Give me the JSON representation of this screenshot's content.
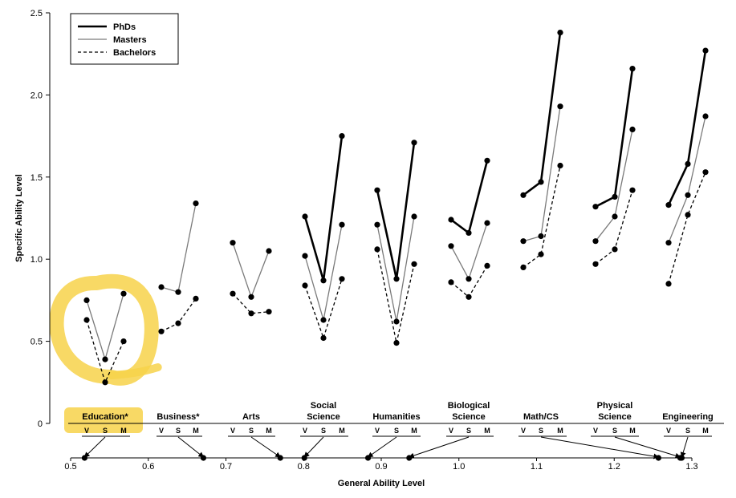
{
  "chart_data": {
    "type": "line",
    "xlabel": "General Ability Level",
    "ylabel": "Specific Ability Level",
    "x_ticks": [
      "0.5",
      "0.6",
      "0.7",
      "0.8",
      "0.9",
      "1.0",
      "1.1",
      "1.2",
      "1.3"
    ],
    "y_ticks": [
      "0",
      "0.5",
      "1.0",
      "1.5",
      "2.0",
      "2.5"
    ],
    "xlim": [
      0.48,
      1.32
    ],
    "ylim": [
      0,
      2.5
    ],
    "legend_position": "top-left",
    "series": [
      {
        "name": "PhDs",
        "style": "thick-solid"
      },
      {
        "name": "Masters",
        "style": "thin-gray"
      },
      {
        "name": "Bachelors",
        "style": "dashed"
      }
    ],
    "sub_labels": [
      "V",
      "S",
      "M"
    ],
    "fields": [
      {
        "name": "Education*",
        "label_lines": [
          "Education*"
        ],
        "highlighted": true,
        "general": [
          0.518,
          null,
          null
        ],
        "values": {
          "PhDs": null,
          "Masters": [
            0.75,
            0.39,
            0.79
          ],
          "Bachelors": [
            0.63,
            0.25,
            0.5
          ]
        }
      },
      {
        "name": "Business*",
        "label_lines": [
          "Business*"
        ],
        "highlighted": false,
        "general": [
          0.671,
          null,
          null
        ],
        "values": {
          "PhDs": null,
          "Masters": [
            0.83,
            0.8,
            1.34
          ],
          "Bachelors": [
            0.56,
            0.61,
            0.76
          ]
        }
      },
      {
        "name": "Arts",
        "label_lines": [
          "Arts"
        ],
        "highlighted": false,
        "general": [
          0.77,
          null,
          null
        ],
        "values": {
          "PhDs": null,
          "Masters": [
            1.1,
            0.77,
            1.05
          ],
          "Bachelors": [
            0.79,
            0.67,
            0.68
          ]
        }
      },
      {
        "name": "Social Science",
        "label_lines": [
          "Social",
          "Science"
        ],
        "highlighted": false,
        "general": [
          0.801,
          null,
          null
        ],
        "values": {
          "PhDs": [
            1.26,
            0.87,
            1.75
          ],
          "Masters": [
            1.02,
            0.63,
            1.21
          ],
          "Bachelors": [
            0.84,
            0.52,
            0.88
          ]
        }
      },
      {
        "name": "Humanities",
        "label_lines": [
          "Humanities"
        ],
        "highlighted": false,
        "general": [
          0.883,
          null,
          null
        ],
        "values": {
          "PhDs": [
            1.42,
            0.88,
            1.71
          ],
          "Masters": [
            1.21,
            0.62,
            1.26
          ],
          "Bachelors": [
            1.06,
            0.49,
            0.97
          ]
        }
      },
      {
        "name": "Biological Science",
        "label_lines": [
          "Biological",
          "Science"
        ],
        "highlighted": false,
        "general": [
          0.936,
          null,
          null
        ],
        "values": {
          "PhDs": [
            1.24,
            1.16,
            1.6
          ],
          "Masters": [
            1.08,
            0.88,
            1.22
          ],
          "Bachelors": [
            0.86,
            0.77,
            0.96
          ]
        }
      },
      {
        "name": "Math/CS",
        "label_lines": [
          "Math/CS"
        ],
        "highlighted": false,
        "general": [
          1.257,
          null,
          null
        ],
        "values": {
          "PhDs": [
            1.39,
            1.47,
            2.38
          ],
          "Masters": [
            1.11,
            1.14,
            1.93
          ],
          "Bachelors": [
            0.95,
            1.03,
            1.57
          ]
        }
      },
      {
        "name": "Physical Science",
        "label_lines": [
          "Physical",
          "Science"
        ],
        "highlighted": false,
        "general": [
          1.285,
          null,
          null
        ],
        "values": {
          "PhDs": [
            1.32,
            1.38,
            2.16
          ],
          "Masters": [
            1.11,
            1.26,
            1.79
          ],
          "Bachelors": [
            0.97,
            1.06,
            1.42
          ]
        }
      },
      {
        "name": "Engineering",
        "label_lines": [
          "Engineering"
        ],
        "highlighted": false,
        "general": [
          1.287,
          null,
          null
        ],
        "values": {
          "PhDs": [
            1.33,
            1.58,
            2.27
          ],
          "Masters": [
            1.1,
            1.39,
            1.87
          ],
          "Bachelors": [
            0.85,
            1.27,
            1.53
          ]
        }
      }
    ]
  }
}
